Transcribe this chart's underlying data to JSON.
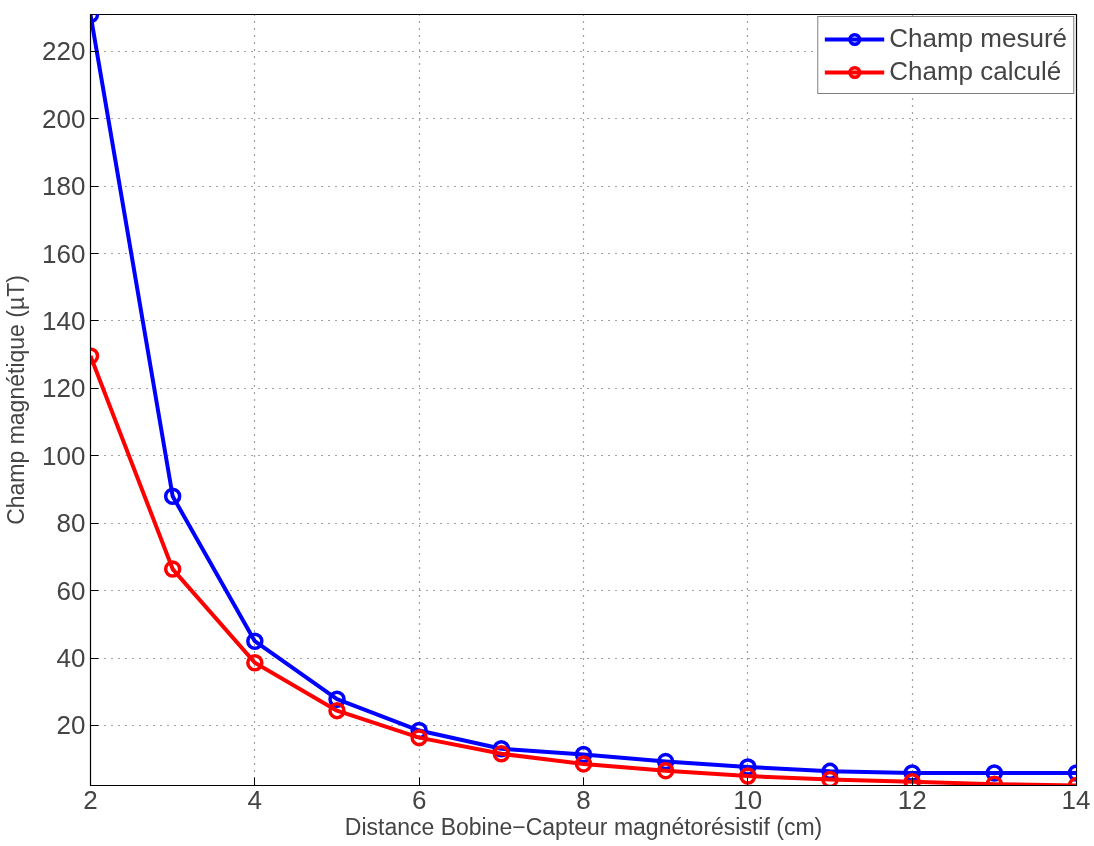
{
  "chart_data": {
    "type": "line",
    "xlabel": "Distance Bobine−Capteur magnétorésistif (cm)",
    "ylabel": "Champ magnétique (µT)",
    "x": [
      2,
      3,
      4,
      5,
      6,
      7,
      8,
      9,
      10,
      11,
      12,
      13,
      14
    ],
    "series": [
      {
        "name": "Champ mesuré",
        "color": "#0000ff",
        "values": [
          230.9,
          88,
          45,
          27.8,
          18.5,
          13.1,
          11.4,
          9.3,
          7.7,
          6.4,
          5.9,
          5.9,
          5.9
        ]
      },
      {
        "name": "Champ calculé",
        "color": "#ff0000",
        "values": [
          129.6,
          66.4,
          38.6,
          24.4,
          16.4,
          11.6,
          8.6,
          6.6,
          5.0,
          4.0,
          3.3,
          2.6,
          2.2
        ]
      }
    ],
    "xlim": [
      2,
      14
    ],
    "ylim": [
      2.2,
      230.9
    ],
    "xticks": [
      2,
      4,
      6,
      8,
      10,
      12,
      14
    ],
    "yticks": [
      20,
      40,
      60,
      80,
      100,
      120,
      140,
      160,
      180,
      200,
      220
    ],
    "grid": true,
    "legend": "top right",
    "marker": "circle",
    "line_style": "solid"
  }
}
